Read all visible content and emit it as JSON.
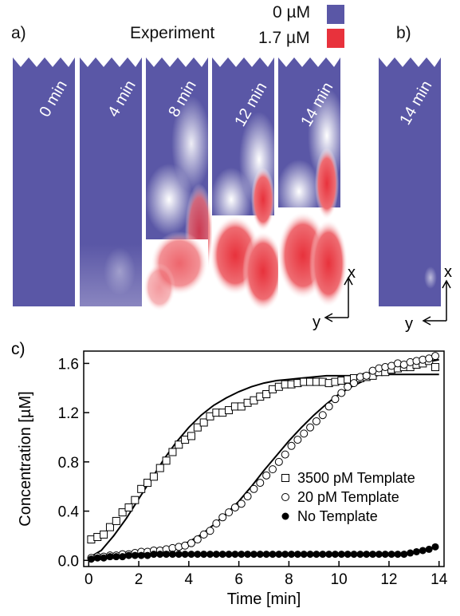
{
  "panel_a": {
    "label": "a)",
    "title": "Experiment",
    "colorbar": {
      "low_label": "0 µM",
      "low_color": "#5a57a6",
      "high_label": "1.7 µM",
      "high_color": "#e8323c"
    },
    "frames": [
      "0 min",
      "4 min",
      "8 min",
      "12 min",
      "14 min"
    ],
    "axis_x": "x",
    "axis_y": "y"
  },
  "panel_b": {
    "label": "b)",
    "frames": [
      "14 min"
    ],
    "axis_x": "x",
    "axis_y": "y"
  },
  "chart_data": {
    "type": "scatter",
    "panel_label": "c)",
    "xlabel": "Time [min]",
    "ylabel": "Concentration [µM]",
    "xlim": [
      -0.2,
      14.2
    ],
    "ylim": [
      -0.05,
      1.7
    ],
    "xticks": [
      0,
      2,
      4,
      6,
      8,
      10,
      12,
      14
    ],
    "yticks": [
      0.0,
      0.4,
      0.8,
      1.2,
      1.6
    ],
    "ytick_labels": [
      "0.0",
      "0.4",
      "0.8",
      "1.2",
      "1.6"
    ],
    "legend_position": "bottom-right",
    "series": [
      {
        "name": "3500 pM Template",
        "marker": "open-square",
        "x": [
          0.1,
          0.35,
          0.6,
          0.85,
          1.1,
          1.35,
          1.6,
          1.85,
          2.1,
          2.35,
          2.6,
          2.85,
          3.1,
          3.35,
          3.6,
          3.85,
          4.1,
          4.35,
          4.6,
          4.85,
          5.1,
          5.35,
          5.6,
          5.85,
          6.1,
          6.35,
          6.6,
          6.85,
          7.1,
          7.35,
          7.6,
          7.85,
          8.1,
          8.35,
          8.6,
          8.85,
          9.1,
          9.35,
          9.6,
          9.85,
          10.1,
          10.35,
          10.6,
          10.85,
          11.1,
          11.35,
          11.6,
          11.85,
          12.1,
          12.35,
          12.6,
          12.85,
          13.1,
          13.35,
          13.6,
          13.85
        ],
        "y": [
          0.17,
          0.19,
          0.21,
          0.27,
          0.32,
          0.39,
          0.43,
          0.49,
          0.58,
          0.63,
          0.68,
          0.75,
          0.81,
          0.88,
          0.94,
          0.98,
          1.01,
          1.08,
          1.12,
          1.17,
          1.2,
          1.2,
          1.22,
          1.25,
          1.25,
          1.28,
          1.3,
          1.33,
          1.35,
          1.39,
          1.41,
          1.43,
          1.43,
          1.44,
          1.45,
          1.45,
          1.45,
          1.45,
          1.44,
          1.45,
          1.46,
          1.47,
          1.48,
          1.48,
          1.49,
          1.5,
          1.53,
          1.53,
          1.55,
          1.56,
          1.57,
          1.57,
          1.59,
          1.6,
          1.62,
          1.57
        ]
      },
      {
        "name": "20 pM Template",
        "marker": "open-circle",
        "x": [
          0.1,
          0.35,
          0.6,
          0.85,
          1.1,
          1.35,
          1.6,
          1.85,
          2.1,
          2.35,
          2.6,
          2.85,
          3.1,
          3.35,
          3.6,
          3.85,
          4.1,
          4.35,
          4.6,
          4.85,
          5.1,
          5.35,
          5.6,
          5.85,
          6.1,
          6.35,
          6.6,
          6.85,
          7.1,
          7.35,
          7.6,
          7.85,
          8.1,
          8.35,
          8.6,
          8.85,
          9.1,
          9.35,
          9.6,
          9.85,
          10.1,
          10.35,
          10.6,
          10.85,
          11.1,
          11.35,
          11.6,
          11.85,
          12.1,
          12.35,
          12.6,
          12.85,
          13.1,
          13.35,
          13.6,
          13.85
        ],
        "y": [
          0.02,
          0.03,
          0.03,
          0.04,
          0.04,
          0.05,
          0.05,
          0.06,
          0.07,
          0.07,
          0.08,
          0.08,
          0.09,
          0.1,
          0.11,
          0.12,
          0.14,
          0.17,
          0.21,
          0.24,
          0.3,
          0.35,
          0.39,
          0.43,
          0.46,
          0.52,
          0.58,
          0.63,
          0.69,
          0.74,
          0.8,
          0.86,
          0.93,
          0.98,
          1.03,
          1.08,
          1.13,
          1.18,
          1.25,
          1.31,
          1.36,
          1.41,
          1.44,
          1.49,
          1.5,
          1.54,
          1.56,
          1.57,
          1.58,
          1.6,
          1.59,
          1.61,
          1.62,
          1.63,
          1.64,
          1.66
        ]
      },
      {
        "name": "No Template",
        "marker": "filled-circle",
        "x": [
          0.1,
          0.35,
          0.6,
          0.85,
          1.1,
          1.35,
          1.6,
          1.85,
          2.1,
          2.35,
          2.6,
          2.85,
          3.1,
          3.35,
          3.6,
          3.85,
          4.1,
          4.35,
          4.6,
          4.85,
          5.1,
          5.35,
          5.6,
          5.85,
          6.1,
          6.35,
          6.6,
          6.85,
          7.1,
          7.35,
          7.6,
          7.85,
          8.1,
          8.35,
          8.6,
          8.85,
          9.1,
          9.35,
          9.6,
          9.85,
          10.1,
          10.35,
          10.6,
          10.85,
          11.1,
          11.35,
          11.6,
          11.85,
          12.1,
          12.35,
          12.6,
          12.85,
          13.1,
          13.35,
          13.6,
          13.85
        ],
        "y": [
          0.01,
          0.02,
          0.02,
          0.03,
          0.03,
          0.03,
          0.04,
          0.04,
          0.04,
          0.04,
          0.05,
          0.05,
          0.05,
          0.05,
          0.05,
          0.05,
          0.05,
          0.05,
          0.05,
          0.05,
          0.05,
          0.05,
          0.05,
          0.05,
          0.05,
          0.05,
          0.05,
          0.05,
          0.05,
          0.05,
          0.05,
          0.05,
          0.05,
          0.05,
          0.05,
          0.05,
          0.05,
          0.05,
          0.05,
          0.05,
          0.05,
          0.05,
          0.05,
          0.05,
          0.05,
          0.05,
          0.05,
          0.05,
          0.05,
          0.05,
          0.05,
          0.06,
          0.07,
          0.08,
          0.09,
          0.11
        ]
      }
    ],
    "fit_curves": [
      {
        "x": [
          0,
          0.5,
          1,
          1.5,
          2,
          2.5,
          3,
          3.5,
          4,
          4.5,
          5,
          5.5,
          6,
          6.5,
          7,
          7.5,
          8,
          8.5,
          9,
          9.5,
          10,
          10.5,
          11,
          11.5,
          12,
          12.5,
          13,
          13.5,
          14
        ],
        "y": [
          0.02,
          0.08,
          0.2,
          0.34,
          0.5,
          0.66,
          0.82,
          0.96,
          1.08,
          1.18,
          1.26,
          1.32,
          1.37,
          1.41,
          1.44,
          1.46,
          1.47,
          1.48,
          1.49,
          1.5,
          1.5,
          1.5,
          1.51,
          1.51,
          1.51,
          1.51,
          1.51,
          1.51,
          1.51
        ]
      },
      {
        "x": [
          0,
          0.5,
          1,
          1.5,
          2,
          2.5,
          3,
          3.5,
          4,
          4.5,
          5,
          5.5,
          6,
          6.5,
          7,
          7.5,
          8,
          8.5,
          9,
          9.5,
          10,
          10.5,
          11,
          11.5,
          12,
          12.5,
          13,
          13.5,
          14
        ],
        "y": [
          0.0,
          0.01,
          0.02,
          0.03,
          0.04,
          0.06,
          0.08,
          0.11,
          0.15,
          0.21,
          0.29,
          0.38,
          0.48,
          0.6,
          0.73,
          0.85,
          0.97,
          1.08,
          1.18,
          1.27,
          1.35,
          1.41,
          1.46,
          1.5,
          1.54,
          1.57,
          1.59,
          1.61,
          1.63
        ]
      }
    ]
  }
}
